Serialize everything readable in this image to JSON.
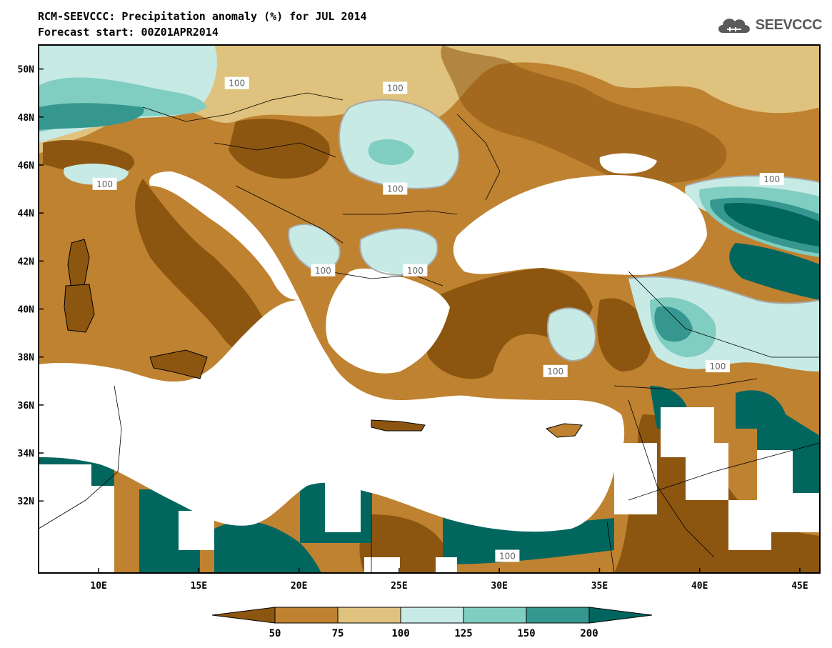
{
  "header": {
    "title": "RCM-SEEVCCC: Precipitation anomaly (%) for JUL 2014",
    "subtitle": "Forecast start: 00Z01APR2014",
    "logo_text": "SEEVCCC",
    "logo_icon": "cloud-icon"
  },
  "map": {
    "lon_range": [
      7,
      46
    ],
    "lat_range": [
      29,
      51
    ],
    "x_ticks": [
      {
        "lon": 10,
        "label": "10E"
      },
      {
        "lon": 15,
        "label": "15E"
      },
      {
        "lon": 20,
        "label": "20E"
      },
      {
        "lon": 25,
        "label": "25E"
      },
      {
        "lon": 30,
        "label": "30E"
      },
      {
        "lon": 35,
        "label": "35E"
      },
      {
        "lon": 40,
        "label": "40E"
      },
      {
        "lon": 45,
        "label": "45E"
      }
    ],
    "y_ticks": [
      {
        "lat": 50,
        "label": "50N"
      },
      {
        "lat": 48,
        "label": "48N"
      },
      {
        "lat": 46,
        "label": "46N"
      },
      {
        "lat": 44,
        "label": "44N"
      },
      {
        "lat": 42,
        "label": "42N"
      },
      {
        "lat": 40,
        "label": "40N"
      },
      {
        "lat": 38,
        "label": "38N"
      },
      {
        "lat": 36,
        "label": "36N"
      },
      {
        "lat": 34,
        "label": "34N"
      },
      {
        "lat": 32,
        "label": "32N"
      }
    ],
    "contour_labels": [
      {
        "text": "100",
        "lon": 16.9,
        "lat": 49.4
      },
      {
        "text": "100",
        "lon": 24.8,
        "lat": 49.2
      },
      {
        "text": "100",
        "lon": 10.3,
        "lat": 45.2
      },
      {
        "text": "100",
        "lon": 24.8,
        "lat": 45.0
      },
      {
        "text": "100",
        "lon": 43.6,
        "lat": 45.4
      },
      {
        "text": "100",
        "lon": 21.2,
        "lat": 41.6
      },
      {
        "text": "100",
        "lon": 25.8,
        "lat": 41.6
      },
      {
        "text": "100",
        "lon": 32.8,
        "lat": 37.4
      },
      {
        "text": "100",
        "lon": 40.9,
        "lat": 37.6
      },
      {
        "text": "100",
        "lon": 30.4,
        "lat": 29.7
      }
    ]
  },
  "colorbar": {
    "ticks": [
      "50",
      "75",
      "100",
      "125",
      "150",
      "200"
    ],
    "colors": {
      "below50": "#8c5610",
      "c50_75": "#bf8230",
      "c75_100": "#dfc27d",
      "c100_125": "#c7eae5",
      "c125_150": "#80cdc1",
      "c150_200": "#35978f",
      "above200": "#01665e"
    }
  }
}
